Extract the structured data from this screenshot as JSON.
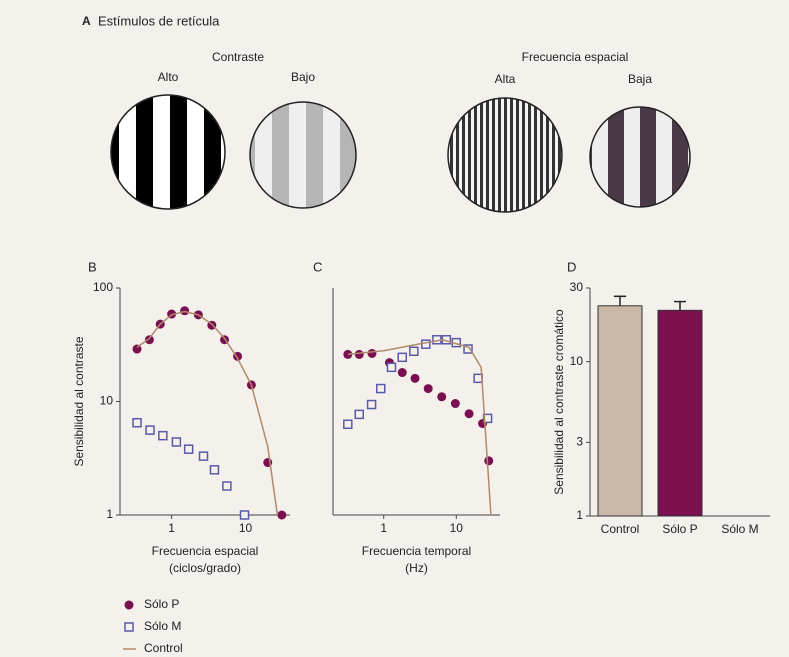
{
  "figure": {
    "panel": "A",
    "title": "Estímulos de retícula",
    "groups": [
      {
        "label": "Contraste",
        "items": [
          "Alto",
          "Bajo"
        ]
      },
      {
        "label": "Frecuencia espacial",
        "items": [
          "Alta",
          "Baja"
        ]
      }
    ]
  },
  "chart_data": [
    {
      "type": "scatter",
      "panel": "B",
      "ylabel": "Sensibilidad al contraste",
      "xlabel": [
        "Frecuencia espacial",
        "(ciclos/grado)"
      ],
      "xlog": true,
      "ylog": true,
      "xlim": [
        0.2,
        40
      ],
      "ylim": [
        1,
        100
      ],
      "xticks": [
        1,
        10
      ],
      "yticks": [
        1,
        10,
        100
      ],
      "series": [
        {
          "name": "Sólo P",
          "marker": "dot",
          "color": "#7a1050",
          "x": [
            0.34,
            0.5,
            0.7,
            1.0,
            1.5,
            2.3,
            3.5,
            5.2,
            7.8,
            12,
            20,
            31
          ],
          "values": [
            29,
            35,
            48,
            59,
            63,
            58,
            47,
            35,
            25,
            14,
            2.9,
            1
          ]
        },
        {
          "name": "Sólo M",
          "marker": "square",
          "color": "#5a5aa8",
          "x": [
            0.34,
            0.51,
            0.76,
            1.16,
            1.7,
            2.7,
            3.8,
            5.6,
            9.7
          ],
          "values": [
            6.5,
            5.6,
            5.0,
            4.4,
            3.8,
            3.3,
            2.5,
            1.8,
            1.0
          ]
        },
        {
          "name": "Control",
          "marker": "line",
          "color": "#b08a6a",
          "x": [
            0.34,
            0.5,
            0.7,
            1.0,
            1.5,
            2.3,
            3.5,
            5.2,
            7.8,
            12,
            20,
            27
          ],
          "values": [
            30,
            36,
            48,
            58,
            62,
            58,
            48,
            36,
            24,
            14,
            4,
            1
          ]
        }
      ]
    },
    {
      "type": "scatter",
      "panel": "C",
      "xlabel": [
        "Frecuencia temporal",
        "(Hz)"
      ],
      "xlog": true,
      "ylog": true,
      "xlim": [
        0.2,
        40
      ],
      "ylim": [
        1,
        100
      ],
      "xticks": [
        1,
        10
      ],
      "series": [
        {
          "marker": "dot",
          "color": "#7a1050",
          "x": [
            0.32,
            0.46,
            0.69,
            1.2,
            1.8,
            2.7,
            4.1,
            6.3,
            9.7,
            15,
            23,
            28
          ],
          "values": [
            26,
            26,
            26.5,
            22,
            18,
            16,
            13,
            11,
            9.6,
            7.8,
            6.4,
            3.0
          ]
        },
        {
          "marker": "square",
          "color": "#5a5aa8",
          "x": [
            0.32,
            0.46,
            0.68,
            0.91,
            1.28,
            1.8,
            2.6,
            3.8,
            5.4,
            7.3,
            10,
            14.5,
            20,
            27
          ],
          "values": [
            6.3,
            7.7,
            9.4,
            13,
            20,
            24.5,
            27.7,
            32,
            35,
            35,
            33,
            29,
            16,
            7.1
          ]
        },
        {
          "marker": "line",
          "color": "#b08a6a",
          "x": [
            0.32,
            1,
            3,
            6.5,
            15,
            22,
            30
          ],
          "values": [
            26,
            28,
            32,
            35,
            30,
            20,
            1
          ]
        }
      ]
    },
    {
      "type": "bar",
      "panel": "D",
      "ylabel": "Sensibilidad al contraste cromático",
      "ylog": true,
      "ylim": [
        1,
        30
      ],
      "yticks": [
        1,
        3,
        10,
        30
      ],
      "categories": [
        "Control",
        "Sólo P",
        "Sólo M"
      ],
      "values": [
        23,
        21.5,
        null
      ],
      "errors": [
        3.5,
        3,
        null
      ],
      "colors": [
        "#c8b9a6",
        "#7a1050",
        "#888888"
      ]
    }
  ]
}
